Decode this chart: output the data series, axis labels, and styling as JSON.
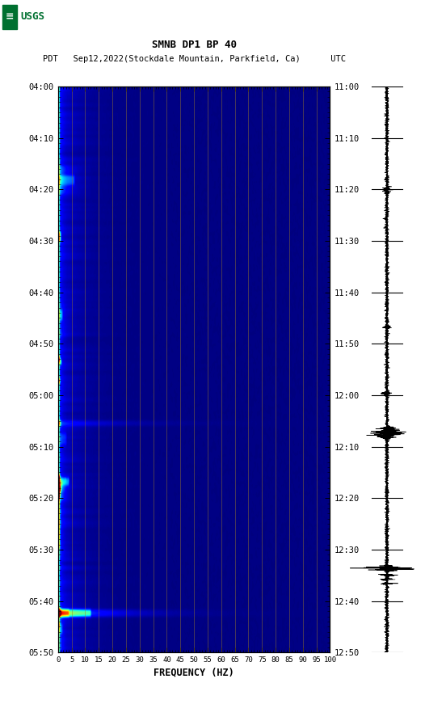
{
  "title_line1": "SMNB DP1 BP 40",
  "title_line2": "PDT   Sep12,2022(Stockdale Mountain, Parkfield, Ca)      UTC",
  "xlabel": "FREQUENCY (HZ)",
  "freq_ticks": [
    0,
    5,
    10,
    15,
    20,
    25,
    30,
    35,
    40,
    45,
    50,
    55,
    60,
    65,
    70,
    75,
    80,
    85,
    90,
    95,
    100
  ],
  "time_ticks_left": [
    "04:00",
    "04:10",
    "04:20",
    "04:30",
    "04:40",
    "04:50",
    "05:00",
    "05:10",
    "05:20",
    "05:30",
    "05:40",
    "05:50"
  ],
  "time_ticks_right": [
    "11:00",
    "11:10",
    "11:20",
    "11:30",
    "11:40",
    "11:50",
    "12:00",
    "12:10",
    "12:20",
    "12:30",
    "12:40",
    "12:50"
  ],
  "freq_min": 0,
  "freq_max": 100,
  "n_time": 600,
  "n_freq": 500,
  "background_color": "#ffffff",
  "colormap": "jet",
  "vertical_line_color": "#9B7A2A",
  "vertical_line_alpha": 0.55,
  "vertical_line_freqs": [
    5,
    10,
    15,
    20,
    25,
    30,
    35,
    40,
    45,
    50,
    55,
    60,
    65,
    70,
    75,
    80,
    85,
    90,
    95
  ],
  "usgs_green": "#007030"
}
